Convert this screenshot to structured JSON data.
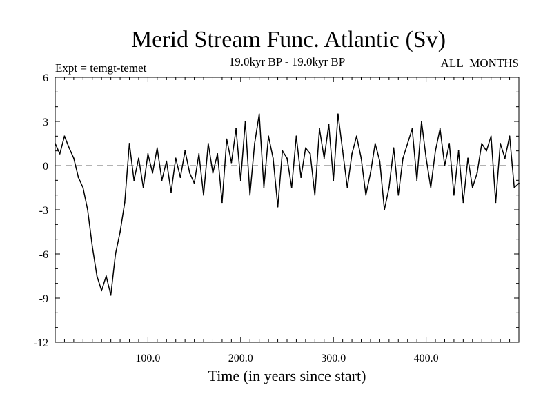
{
  "chart_data": {
    "type": "line",
    "title": "Merid Stream Func. Atlantic (Sv)",
    "subtitle_left": "Expt = temgt-temet",
    "subtitle_center": "19.0kyr BP - 19.0kyr BP",
    "subtitle_right": "ALL_MONTHS",
    "xlabel": "Time (in years since start)",
    "ylabel": "",
    "xlim": [
      0,
      500
    ],
    "ylim": [
      -12,
      6
    ],
    "x_ticks": [
      100,
      200,
      300,
      400
    ],
    "x_tick_labels": [
      "100.0",
      "200.0",
      "300.0",
      "400.0"
    ],
    "y_ticks": [
      6,
      3,
      0,
      -3,
      -6,
      -9,
      -12
    ],
    "y_tick_labels": [
      "6",
      "3",
      "0",
      "-3",
      "-6",
      "-9",
      "-12"
    ],
    "zero_line": "dashed",
    "grid": false,
    "series": [
      {
        "name": "Merid Stream Func. Atlantic",
        "x": [
          0,
          5,
          10,
          15,
          20,
          25,
          30,
          35,
          40,
          45,
          50,
          55,
          60,
          65,
          70,
          75,
          80,
          85,
          90,
          95,
          100,
          105,
          110,
          115,
          120,
          125,
          130,
          135,
          140,
          145,
          150,
          155,
          160,
          165,
          170,
          175,
          180,
          185,
          190,
          195,
          200,
          205,
          210,
          215,
          220,
          225,
          230,
          235,
          240,
          245,
          250,
          255,
          260,
          265,
          270,
          275,
          280,
          285,
          290,
          295,
          300,
          305,
          310,
          315,
          320,
          325,
          330,
          335,
          340,
          345,
          350,
          355,
          360,
          365,
          370,
          375,
          380,
          385,
          390,
          395,
          400,
          405,
          410,
          415,
          420,
          425,
          430,
          435,
          440,
          445,
          450,
          455,
          460,
          465,
          470,
          475,
          480,
          485,
          490,
          495,
          500
        ],
        "values": [
          1.5,
          0.8,
          2.0,
          1.2,
          0.5,
          -0.8,
          -1.5,
          -3.0,
          -5.5,
          -7.5,
          -8.5,
          -7.5,
          -8.8,
          -6.0,
          -4.5,
          -2.5,
          1.5,
          -1.0,
          0.5,
          -1.5,
          0.8,
          -0.5,
          1.2,
          -1.0,
          0.3,
          -1.8,
          0.5,
          -0.8,
          1.0,
          -0.5,
          -1.2,
          0.8,
          -2.0,
          1.5,
          -0.5,
          0.8,
          -2.5,
          1.8,
          0.2,
          2.5,
          -1.0,
          3.0,
          -2.0,
          1.5,
          3.5,
          -1.5,
          2.0,
          0.5,
          -2.8,
          1.0,
          0.5,
          -1.5,
          2.0,
          -0.8,
          1.2,
          0.8,
          -2.0,
          2.5,
          0.5,
          2.8,
          -1.0,
          3.5,
          1.0,
          -1.5,
          0.8,
          2.0,
          0.5,
          -2.0,
          -0.5,
          1.5,
          0.3,
          -3.0,
          -1.5,
          1.2,
          -2.0,
          0.5,
          1.5,
          2.5,
          -1.0,
          3.0,
          0.5,
          -1.5,
          1.0,
          2.5,
          0.0,
          1.5,
          -2.0,
          1.0,
          -2.5,
          0.5,
          -1.5,
          -0.5,
          1.5,
          1.0,
          2.0,
          -2.5,
          1.5,
          0.5,
          2.0,
          -1.5,
          -1.2
        ]
      }
    ]
  }
}
